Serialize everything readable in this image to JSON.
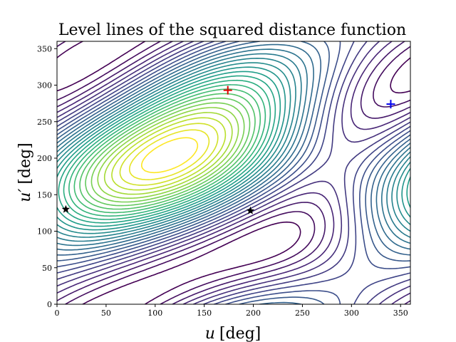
{
  "chart_data": {
    "type": "contour",
    "title": "Level lines of the squared distance function",
    "xlabel_symbol": "u",
    "xlabel_unit": "[deg]",
    "ylabel_symbol": "u′",
    "ylabel_unit": "[deg]",
    "xlim": [
      0,
      360
    ],
    "ylim": [
      0,
      360
    ],
    "x_ticks": [
      0,
      50,
      100,
      150,
      200,
      250,
      300,
      350
    ],
    "y_ticks": [
      0,
      50,
      100,
      150,
      200,
      250,
      300,
      350
    ],
    "grid": false,
    "colormap": "viridis",
    "n_levels": 30,
    "markers": [
      {
        "symbol": "plus",
        "color": "#dd0000",
        "x": 174,
        "y": 293
      },
      {
        "symbol": "plus",
        "color": "#0000ee",
        "x": 340,
        "y": 274
      },
      {
        "symbol": "star",
        "color": "#000000",
        "x": 9,
        "y": 130
      },
      {
        "symbol": "star",
        "color": "#000000",
        "x": 197,
        "y": 128
      }
    ]
  }
}
